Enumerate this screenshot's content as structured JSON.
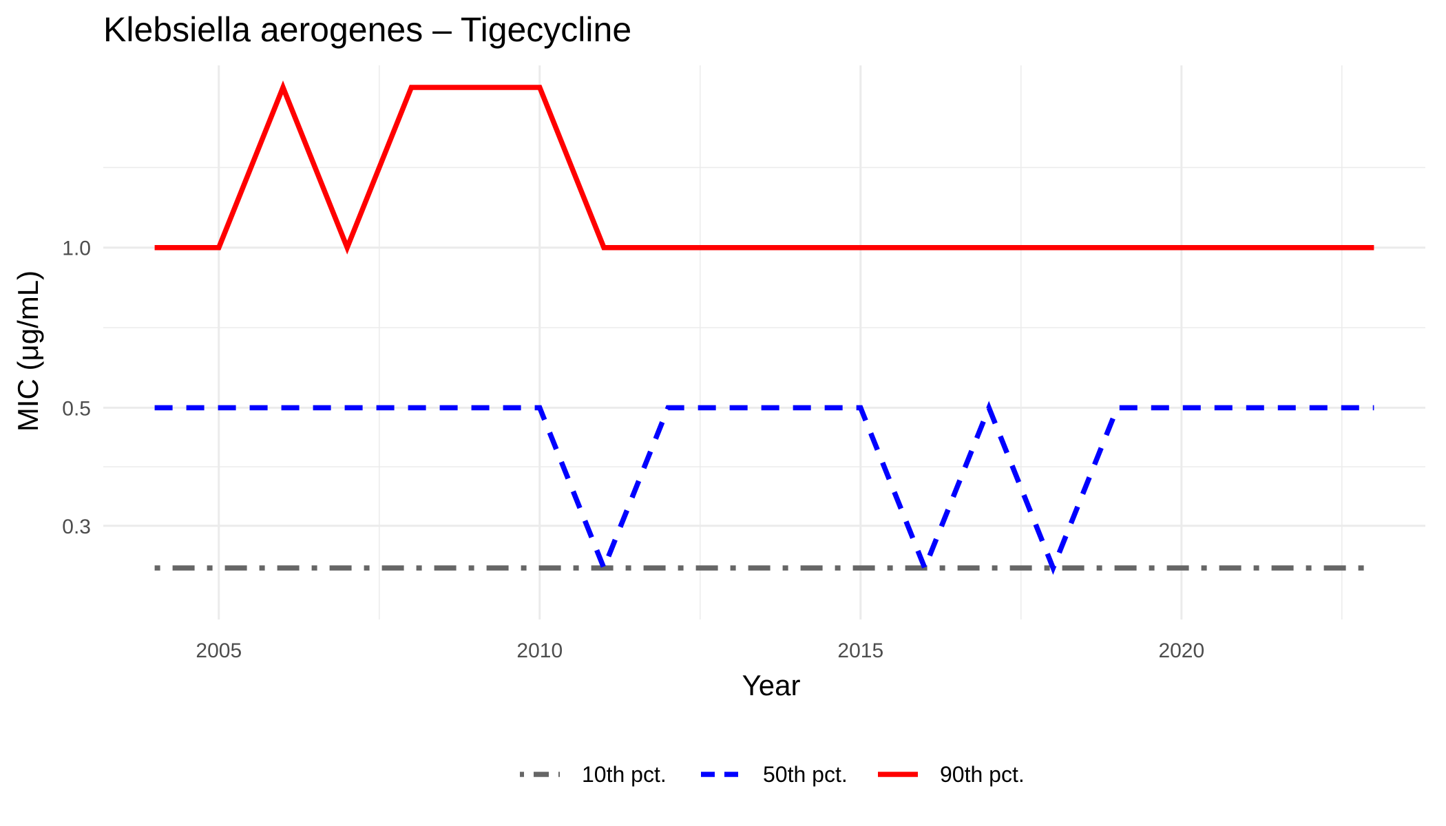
{
  "chart_data": {
    "type": "line",
    "title": "Klebsiella aerogenes – Tigecycline",
    "xlabel": "Year",
    "ylabel": "MIC (μg/mL)",
    "y_scale": "log2",
    "x_ticks": [
      2005,
      2010,
      2015,
      2020
    ],
    "y_ticks": [
      {
        "value": 1.0,
        "label": "1.0"
      },
      {
        "value": 0.5,
        "label": "0.5"
      },
      {
        "value": 0.3,
        "label": "0.3"
      }
    ],
    "xlim": [
      2003.2,
      2023.8
    ],
    "ylim": [
      0.2,
      2.2
    ],
    "grid": "on",
    "legend_position": "bottom",
    "x": [
      2004,
      2005,
      2006,
      2007,
      2008,
      2009,
      2010,
      2011,
      2012,
      2013,
      2014,
      2015,
      2016,
      2017,
      2018,
      2019,
      2020,
      2021,
      2022,
      2023
    ],
    "series": [
      {
        "name": "10th pct.",
        "color": "#666666",
        "line_style": "dotdash",
        "values": [
          0.25,
          0.25,
          0.25,
          0.25,
          0.25,
          0.25,
          0.25,
          0.25,
          0.25,
          0.25,
          0.25,
          0.25,
          0.25,
          0.25,
          0.25,
          0.25,
          0.25,
          0.25,
          0.25,
          0.25
        ]
      },
      {
        "name": "50th pct.",
        "color": "#0000ff",
        "line_style": "dashed",
        "values": [
          0.5,
          0.5,
          0.5,
          0.5,
          0.5,
          0.5,
          0.5,
          0.25,
          0.5,
          0.5,
          0.5,
          0.5,
          0.25,
          0.5,
          0.25,
          0.5,
          0.5,
          0.5,
          0.5,
          0.5
        ]
      },
      {
        "name": "90th pct.",
        "color": "#ff0000",
        "line_style": "solid",
        "values": [
          1,
          1,
          2,
          1,
          2,
          2,
          2,
          1,
          1,
          1,
          1,
          1,
          1,
          1,
          1,
          1,
          1,
          1,
          1,
          1
        ]
      }
    ]
  }
}
